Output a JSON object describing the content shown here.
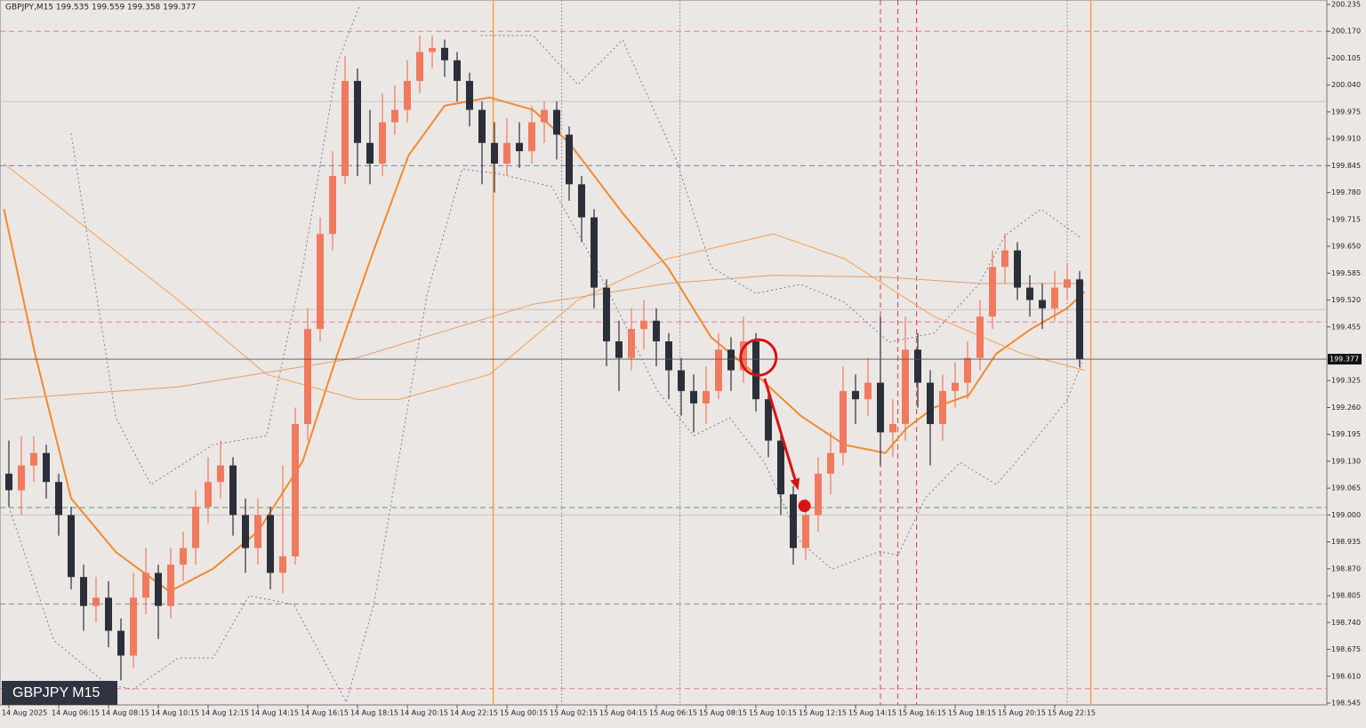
{
  "chart_data": {
    "type": "candlestick",
    "header": "GBPJPY,M15  199.535 199.559 199.358 199.377",
    "watermark": "GBPJPY M15",
    "bull_color": "#f07a5e",
    "bear_color": "#2b2f3a",
    "ylim": [
      198.545,
      200.235
    ],
    "yticks": [
      200.235,
      {
        "value": 200.17,
        "label": "200.170"
      },
      200.105,
      {
        "value": 200.04,
        "label": "200.040"
      },
      199.975,
      {
        "value": 199.91,
        "label": "199.910"
      },
      199.845,
      {
        "value": 199.78,
        "label": "199.780"
      },
      199.715,
      {
        "value": 199.65,
        "label": "199.650"
      },
      199.585,
      {
        "value": 199.52,
        "label": "199.520"
      },
      199.455,
      199.325,
      {
        "value": 199.26,
        "label": "199.260"
      },
      199.195,
      {
        "value": 199.13,
        "label": "199.130"
      },
      199.065,
      {
        "value": 199,
        "label": "199.000"
      },
      198.935,
      {
        "value": 198.87,
        "label": "198.870"
      },
      198.805,
      {
        "value": 198.74,
        "label": "198.740"
      },
      198.675,
      {
        "value": 198.61,
        "label": "198.610"
      },
      198.545
    ],
    "last_price": 199.377,
    "categories": [
      "14 Aug 2025",
      null,
      null,
      null,
      "14 Aug 06:15",
      null,
      null,
      null,
      "14 Aug 08:15",
      null,
      null,
      null,
      "14 Aug 10:15",
      null,
      null,
      null,
      "14 Aug 12:15",
      null,
      null,
      null,
      "14 Aug 14:15",
      null,
      null,
      null,
      "14 Aug 16:15",
      null,
      null,
      null,
      "14 Aug 18:15",
      null,
      null,
      null,
      "14 Aug 20:15",
      null,
      null,
      null,
      "14 Aug 22:15",
      null,
      null,
      null,
      "15 Aug 00:15",
      null,
      null,
      null,
      "15 Aug 02:15",
      null,
      null,
      null,
      "15 Aug 04:15",
      null,
      null,
      null,
      "15 Aug 06:15",
      null,
      null,
      null,
      "15 Aug 08:15",
      null,
      null,
      null,
      "15 Aug 10:15",
      null,
      null,
      null,
      "15 Aug 12:15",
      null,
      null,
      null,
      "15 Aug 14:15",
      null,
      null,
      null,
      "15 Aug 16:15",
      null,
      null,
      null,
      "15 Aug 18:15",
      null,
      null,
      null,
      "15 Aug 20:15",
      null,
      null,
      null,
      "15 Aug 22:15",
      null,
      null
    ],
    "ohlc": [
      [
        199.1,
        199.18,
        199.02,
        199.06
      ],
      [
        199.06,
        199.19,
        199.0,
        199.12
      ],
      [
        199.12,
        199.19,
        199.08,
        199.15
      ],
      [
        199.15,
        199.17,
        199.04,
        199.08
      ],
      [
        199.08,
        199.1,
        198.95,
        199.0
      ],
      [
        199.0,
        199.02,
        198.82,
        198.85
      ],
      [
        198.85,
        198.88,
        198.72,
        198.78
      ],
      [
        198.78,
        198.85,
        198.74,
        198.8
      ],
      [
        198.8,
        198.84,
        198.68,
        198.72
      ],
      [
        198.72,
        198.75,
        198.6,
        198.66
      ],
      [
        198.66,
        198.86,
        198.63,
        198.8
      ],
      [
        198.8,
        198.92,
        198.76,
        198.86
      ],
      [
        198.86,
        198.88,
        198.7,
        198.78
      ],
      [
        198.78,
        198.92,
        198.75,
        198.88
      ],
      [
        198.88,
        198.96,
        198.84,
        198.92
      ],
      [
        198.92,
        199.06,
        198.88,
        199.02
      ],
      [
        199.02,
        199.14,
        198.98,
        199.08
      ],
      [
        199.08,
        199.18,
        199.04,
        199.12
      ],
      [
        199.12,
        199.14,
        198.95,
        199.0
      ],
      [
        199.0,
        199.04,
        198.86,
        198.92
      ],
      [
        198.92,
        199.04,
        198.88,
        199.0
      ],
      [
        199.0,
        199.02,
        198.82,
        198.86
      ],
      [
        198.86,
        199.12,
        198.81,
        198.9
      ],
      [
        198.9,
        199.26,
        198.88,
        199.22
      ],
      [
        199.22,
        199.5,
        199.18,
        199.45
      ],
      [
        199.45,
        199.72,
        199.42,
        199.68
      ],
      [
        199.68,
        199.88,
        199.64,
        199.82
      ],
      [
        199.82,
        200.11,
        199.8,
        200.05
      ],
      [
        200.05,
        200.08,
        199.82,
        199.9
      ],
      [
        199.9,
        199.98,
        199.8,
        199.85
      ],
      [
        199.85,
        200.02,
        199.82,
        199.95
      ],
      [
        199.95,
        200.04,
        199.92,
        199.98
      ],
      [
        199.98,
        200.1,
        199.95,
        200.05
      ],
      [
        200.05,
        200.16,
        200.02,
        200.12
      ],
      [
        200.12,
        200.16,
        200.08,
        200.13
      ],
      [
        200.13,
        200.15,
        200.06,
        200.1
      ],
      [
        200.1,
        200.12,
        200.0,
        200.05
      ],
      [
        200.05,
        200.07,
        199.94,
        199.98
      ],
      [
        199.98,
        200.0,
        199.8,
        199.9
      ],
      [
        199.9,
        199.95,
        199.78,
        199.85
      ],
      [
        199.85,
        199.96,
        199.82,
        199.9
      ],
      [
        199.9,
        199.95,
        199.84,
        199.88
      ],
      [
        199.88,
        199.99,
        199.85,
        199.95
      ],
      [
        199.95,
        200.0,
        199.9,
        199.98
      ],
      [
        199.98,
        200.0,
        199.86,
        199.92
      ],
      [
        199.92,
        199.94,
        199.76,
        199.8
      ],
      [
        199.8,
        199.82,
        199.66,
        199.72
      ],
      [
        199.72,
        199.74,
        199.5,
        199.55
      ],
      [
        199.55,
        199.57,
        199.36,
        199.42
      ],
      [
        199.42,
        199.47,
        199.3,
        199.38
      ],
      [
        199.38,
        199.5,
        199.35,
        199.45
      ],
      [
        199.45,
        199.52,
        199.4,
        199.47
      ],
      [
        199.47,
        199.5,
        199.36,
        199.42
      ],
      [
        199.42,
        199.44,
        199.28,
        199.35
      ],
      [
        199.35,
        199.38,
        199.24,
        199.3
      ],
      [
        199.3,
        199.34,
        199.2,
        199.27
      ],
      [
        199.27,
        199.36,
        199.22,
        199.3
      ],
      [
        199.3,
        199.44,
        199.28,
        199.4
      ],
      [
        199.4,
        199.43,
        199.3,
        199.35
      ],
      [
        199.35,
        199.48,
        199.32,
        199.42
      ],
      [
        199.42,
        199.44,
        199.25,
        199.28
      ],
      [
        199.28,
        199.3,
        199.14,
        199.18
      ],
      [
        199.18,
        199.2,
        199.0,
        199.05
      ],
      [
        199.05,
        199.07,
        198.88,
        198.92
      ],
      [
        198.92,
        199.04,
        198.89,
        199.0
      ],
      [
        199.0,
        199.14,
        198.96,
        199.1
      ],
      [
        199.1,
        199.2,
        199.05,
        199.15
      ],
      [
        199.15,
        199.36,
        199.12,
        199.3
      ],
      [
        199.3,
        199.34,
        199.22,
        199.28
      ],
      [
        199.28,
        199.38,
        199.24,
        199.32
      ],
      [
        199.32,
        199.48,
        199.12,
        199.2
      ],
      [
        199.2,
        199.28,
        199.14,
        199.22
      ],
      [
        199.22,
        199.48,
        199.18,
        199.4
      ],
      [
        199.4,
        199.44,
        199.26,
        199.32
      ],
      [
        199.32,
        199.35,
        199.12,
        199.22
      ],
      [
        199.22,
        199.34,
        199.18,
        199.3
      ],
      [
        199.3,
        199.37,
        199.26,
        199.32
      ],
      [
        199.32,
        199.42,
        199.28,
        199.38
      ],
      [
        199.38,
        199.52,
        199.35,
        199.48
      ],
      [
        199.48,
        199.64,
        199.45,
        199.6
      ],
      [
        199.6,
        199.68,
        199.56,
        199.64
      ],
      [
        199.64,
        199.66,
        199.52,
        199.55
      ],
      [
        199.55,
        199.58,
        199.48,
        199.52
      ],
      [
        199.52,
        199.56,
        199.45,
        199.5
      ],
      [
        199.5,
        199.59,
        199.47,
        199.55
      ],
      [
        199.55,
        199.61,
        199.52,
        199.57
      ],
      [
        199.57,
        199.59,
        199.358,
        199.377
      ]
    ],
    "indicators": [
      {
        "color": "#f28a2e",
        "width": 2,
        "dash": false,
        "x": [
          -0.4,
          2.1,
          5,
          8.6,
          12.9,
          16.4,
          20,
          23.6,
          26.4,
          29.3,
          32.1,
          35,
          38.6,
          42.1,
          45,
          49.3,
          52.9,
          56.4,
          60,
          63.6,
          67.1,
          70.4,
          72.1,
          74.3,
          77.1,
          79.3,
          82.1,
          85,
          86.4
        ],
        "values": [
          199.74,
          199.39,
          199.04,
          198.91,
          198.815,
          198.87,
          198.96,
          199.13,
          199.39,
          199.64,
          199.87,
          199.99,
          200.01,
          199.98,
          199.9,
          199.73,
          199.6,
          199.43,
          199.34,
          199.24,
          199.17,
          199.15,
          199.21,
          199.26,
          199.29,
          199.39,
          199.45,
          199.5,
          199.54
        ]
      },
      {
        "color": "#f5a050",
        "width": 1,
        "dash": false,
        "x": [
          -0.4,
          6.4,
          13.6,
          20.7,
          27.9,
          31.4,
          38.6,
          45.7,
          52.9,
          61.4,
          67.1,
          74.3,
          81.4,
          86.4
        ],
        "values": [
          199.85,
          199.69,
          199.52,
          199.34,
          199.28,
          199.28,
          199.34,
          199.52,
          199.62,
          199.68,
          199.62,
          199.48,
          199.39,
          199.35
        ]
      },
      {
        "color": "#e0a070",
        "width": 1,
        "dash": false,
        "x": [
          -0.4,
          13.6,
          27.9,
          42.1,
          52.9,
          61.4,
          70.7,
          77.9,
          86.4
        ],
        "values": [
          199.28,
          199.31,
          199.38,
          199.51,
          199.56,
          199.58,
          199.575,
          199.56,
          199.56
        ]
      },
      {
        "color": "#7a7f9a",
        "width": 1,
        "dash": true,
        "x": [
          5,
          8.6,
          11.4,
          16.4,
          20.7,
          23.6,
          26.4,
          28.2,
          33,
          37.9,
          42.1,
          45.7,
          49.3,
          53.6,
          56.4,
          60,
          63.6,
          67.1,
          70.7,
          74.3,
          77.9,
          80,
          82.9,
          86.1
        ],
        "values": [
          199.923,
          199.235,
          199.074,
          199.17,
          199.192,
          199.6,
          200.095,
          200.235,
          null,
          200.16,
          200.16,
          200.041,
          200.149,
          199.859,
          199.6,
          199.536,
          199.558,
          199.515,
          199.418,
          199.44,
          199.558,
          199.676,
          199.74,
          199.67
        ]
      },
      {
        "color": "#7a7f9a",
        "width": 1,
        "dash": true,
        "x": [
          0,
          3.6,
          7.9,
          10,
          13.6,
          16.4,
          19.3,
          22.9,
          27.1,
          29.3,
          33.6,
          36.4,
          39.3,
          43.6,
          46.4,
          49.3,
          52.1,
          55,
          57.9,
          60.7,
          63.6,
          66.1,
          70,
          71.4,
          73.6,
          76.4,
          79.3,
          82.1,
          85,
          86.4
        ],
        "values": [
          199.02,
          198.697,
          198.59,
          198.579,
          198.654,
          198.654,
          198.805,
          198.783,
          198.547,
          198.783,
          199.536,
          199.837,
          199.826,
          199.794,
          199.644,
          199.471,
          199.3,
          199.192,
          199.235,
          199.127,
          198.934,
          198.869,
          198.912,
          198.902,
          199.041,
          199.127,
          199.074,
          199.17,
          199.278,
          199.385
        ]
      }
    ],
    "hlines": [
      {
        "value": 200.0,
        "color": "#c8c4c0",
        "dash": false
      },
      {
        "value": 199.497,
        "color": "#c8c4c0",
        "dash": false
      },
      {
        "value": 199.0,
        "color": "#c8c4c0",
        "dash": false
      },
      {
        "value": 200.17,
        "color": "#e87ab0",
        "dash": true
      },
      {
        "value": 199.467,
        "color": "#e87ab0",
        "dash": true
      },
      {
        "value": 198.58,
        "color": "#e87ab0",
        "dash": true
      },
      {
        "value": 199.845,
        "color": "#6d86a8",
        "dash": true
      },
      {
        "value": 199.018,
        "color": "#5a9a6a",
        "dash": true
      },
      {
        "value": 198.785,
        "color": "#8a8a8a",
        "dash": true
      }
    ],
    "vlines": [
      {
        "x": 38.9,
        "color": "#f5a040",
        "dash": false
      },
      {
        "x": 86.9,
        "color": "#f5a040",
        "dash": false
      },
      {
        "x": 44.4,
        "color": "#9a9a9a",
        "dash": true
      },
      {
        "x": 53.9,
        "color": "#9a9a9a",
        "dash": true
      },
      {
        "x": 85,
        "color": "#9a9a9a",
        "dash": true
      },
      {
        "x": 70,
        "color": "#e04040",
        "dash": true
      },
      {
        "x": 71.4,
        "color": "#e04040",
        "dash": true
      },
      {
        "x": 72.9,
        "color": "#e04040",
        "dash": true
      }
    ],
    "annotation": {
      "color": "#d81414",
      "circle": [
        60.2,
        199.381
      ],
      "arrow": [
        60.7,
        199.33,
        63.4,
        199.06
      ],
      "dot": [
        63.9,
        199.022
      ]
    }
  }
}
